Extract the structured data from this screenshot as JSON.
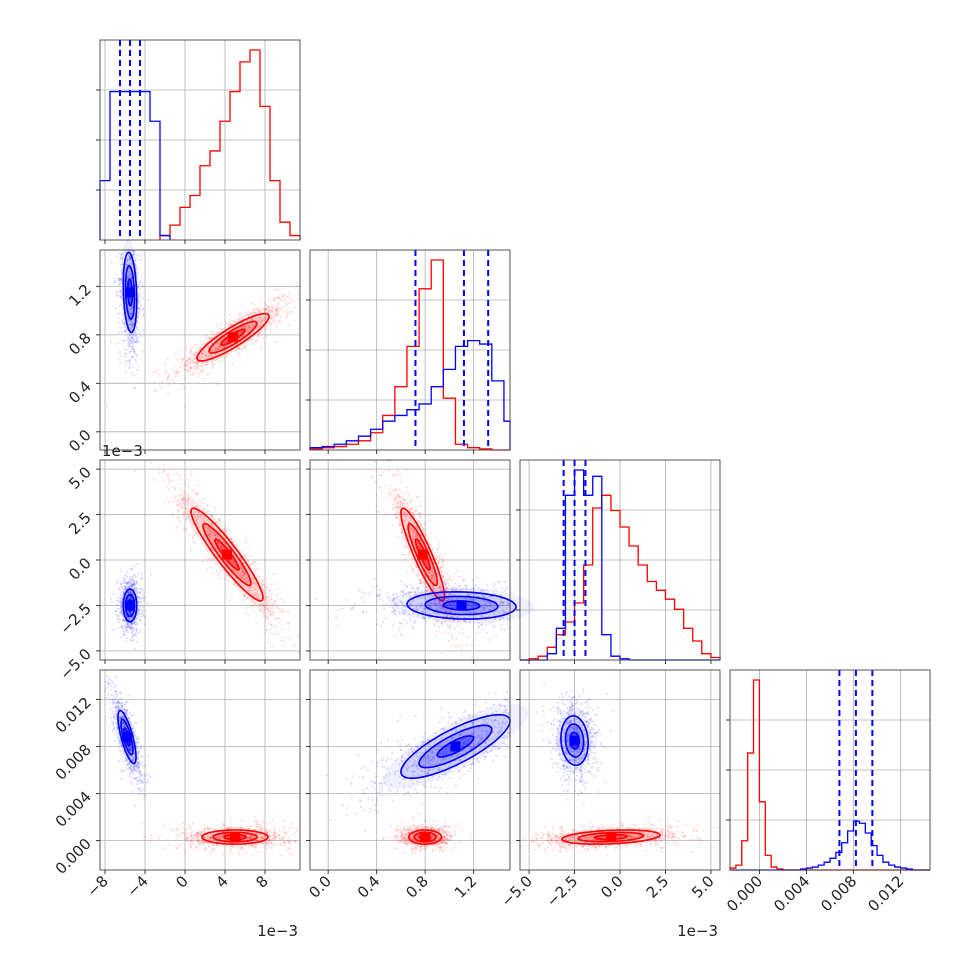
{
  "chart_data": {
    "type": "corner",
    "title": "",
    "colors": {
      "series_a": "#0000ff",
      "series_b": "#ff0000"
    },
    "grid": true,
    "series": [
      {
        "color": "#0000ff"
      },
      {
        "color": "#ff0000"
      }
    ],
    "parameters": [
      {
        "range": [
          -0.0085,
          0.0115
        ],
        "ticks": [
          -8,
          -4,
          0,
          4,
          8
        ],
        "tick_scale": 0.001,
        "tick_labels": [
          "−8",
          "−4",
          "0",
          "4",
          "8"
        ],
        "offset_label": "1e−3",
        "quantiles_blue": [
          -0.0065,
          -0.0055,
          -0.0045
        ],
        "hist_blue": [
          40,
          100,
          100,
          100,
          100,
          80,
          3
        ],
        "hist_blue_bins": [
          -0.0085,
          -0.0075,
          -0.0065,
          -0.0055,
          -0.0045,
          -0.0035,
          -0.0025,
          -0.0015
        ],
        "hist_red_bins": [
          -0.0025,
          -0.0015,
          -0.0005,
          0.0005,
          0.0015,
          0.0025,
          0.0035,
          0.0045,
          0.0055,
          0.0065,
          0.0075,
          0.0085,
          0.0095,
          0.0105,
          0.0115
        ],
        "hist_red": [
          3,
          10,
          22,
          30,
          50,
          60,
          80,
          100,
          120,
          128,
          90,
          40,
          12,
          3
        ]
      },
      {
        "range": [
          -0.15,
          1.5
        ],
        "ticks": [
          0.0,
          0.4,
          0.8,
          1.2
        ],
        "tick_labels": [
          "0.0",
          "0.4",
          "0.8",
          "1.2"
        ],
        "quantiles_blue": [
          0.72,
          1.12,
          1.32
        ],
        "hist_bins": [
          -0.15,
          -0.05,
          0.05,
          0.15,
          0.25,
          0.35,
          0.45,
          0.55,
          0.65,
          0.75,
          0.85,
          0.95,
          1.05,
          1.15,
          1.25,
          1.35,
          1.45,
          1.5
        ],
        "hist_blue": [
          2,
          3,
          5,
          8,
          12,
          18,
          25,
          30,
          35,
          40,
          55,
          70,
          90,
          95,
          92,
          60,
          25
        ],
        "hist_red": [
          1,
          2,
          3,
          5,
          8,
          15,
          30,
          55,
          90,
          140,
          165,
          45,
          5,
          2,
          1,
          0,
          0
        ]
      },
      {
        "range": [
          -0.0055,
          0.0055
        ],
        "ticks": [
          -5.0,
          -2.5,
          0.0,
          2.5,
          5.0
        ],
        "tick_scale": 0.001,
        "tick_labels": [
          "−5.0",
          "−2.5",
          "0.0",
          "2.5",
          "5.0"
        ],
        "offset_label": "1e−3",
        "quantiles_blue": [
          -0.0031,
          -0.0025,
          -0.0019
        ],
        "hist_bins": [
          -0.0055,
          -0.005,
          -0.0045,
          -0.004,
          -0.0035,
          -0.003,
          -0.0025,
          -0.002,
          -0.0015,
          -0.001,
          -0.0005,
          0.0,
          0.0005,
          0.001,
          0.0015,
          0.002,
          0.0025,
          0.003,
          0.0035,
          0.004,
          0.0045,
          0.005,
          0.0055
        ],
        "hist_blue": [
          0,
          0,
          0,
          5,
          25,
          130,
          150,
          130,
          145,
          20,
          3,
          1,
          0,
          0,
          0,
          0,
          0,
          0,
          0,
          0,
          0,
          0
        ],
        "hist_red": [
          0,
          1,
          3,
          10,
          20,
          30,
          45,
          75,
          120,
          130,
          118,
          105,
          90,
          75,
          62,
          55,
          48,
          40,
          25,
          15,
          5,
          2
        ]
      },
      {
        "range": [
          -0.0025,
          0.0145
        ],
        "ticks": [
          0.0,
          0.004,
          0.008,
          0.012
        ],
        "tick_labels": [
          "0.000",
          "0.004",
          "0.008",
          "0.012"
        ],
        "quantiles_blue": [
          0.0068,
          0.0082,
          0.0096
        ],
        "hist_bins": [
          -0.0025,
          -0.002,
          -0.0015,
          -0.001,
          -0.0005,
          0.0,
          0.0005,
          0.001,
          0.0015,
          0.002,
          0.0025,
          0.003,
          0.0035,
          0.004,
          0.0045,
          0.005,
          0.0055,
          0.006,
          0.0065,
          0.007,
          0.0075,
          0.008,
          0.0085,
          0.009,
          0.0095,
          0.01,
          0.0105,
          0.011,
          0.0115,
          0.012,
          0.0125,
          0.013,
          0.0135,
          0.014,
          0.0145
        ],
        "hist_blue": [
          0,
          0,
          0,
          0,
          0,
          0,
          0,
          0,
          0,
          0,
          0,
          0,
          1,
          2,
          3,
          5,
          8,
          12,
          18,
          28,
          40,
          50,
          48,
          38,
          25,
          15,
          8,
          5,
          3,
          2,
          1,
          0,
          0,
          0
        ],
        "hist_red": [
          2,
          5,
          30,
          120,
          195,
          70,
          15,
          3,
          1,
          0,
          0,
          0,
          0,
          0,
          0,
          0,
          0,
          0,
          0,
          0,
          0,
          0,
          0,
          0,
          0,
          0,
          0,
          0,
          0,
          0,
          0,
          0,
          0,
          0
        ]
      }
    ],
    "pairs": [
      {
        "row": 1,
        "col": 0,
        "blue": {
          "mean": [
            -0.0055,
            1.15
          ],
          "sd": [
            0.00045,
            0.22
          ],
          "rho": -0.2
        },
        "red": {
          "mean": [
            0.0048,
            0.78
          ],
          "sd": [
            0.0024,
            0.13
          ],
          "rho": 0.88
        }
      },
      {
        "row": 2,
        "col": 0,
        "blue": {
          "mean": [
            -0.0055,
            -0.0025
          ],
          "sd": [
            0.00045,
            0.0006
          ],
          "rho": 0.0
        },
        "red": {
          "mean": [
            0.0042,
            0.0003
          ],
          "sd": [
            0.0024,
            0.0017
          ],
          "rho": -0.93
        }
      },
      {
        "row": 2,
        "col": 1,
        "blue": {
          "mean": [
            1.1,
            -0.0025
          ],
          "sd": [
            0.3,
            0.0005
          ],
          "rho": -0.1
        },
        "red": {
          "mean": [
            0.78,
            0.0003
          ],
          "sd": [
            0.12,
            0.0017
          ],
          "rho": -0.9
        }
      },
      {
        "row": 3,
        "col": 0,
        "blue": {
          "mean": [
            -0.0058,
            0.0088
          ],
          "sd": [
            0.0006,
            0.0015
          ],
          "rho": -0.75
        },
        "red": {
          "mean": [
            0.005,
            0.0003
          ],
          "sd": [
            0.0022,
            0.0004
          ],
          "rho": 0.0
        }
      },
      {
        "row": 3,
        "col": 1,
        "blue": {
          "mean": [
            1.05,
            0.008
          ],
          "sd": [
            0.3,
            0.0018
          ],
          "rho": 0.8
        },
        "red": {
          "mean": [
            0.8,
            0.0003
          ],
          "sd": [
            0.09,
            0.0004
          ],
          "rho": 0.0
        }
      },
      {
        "row": 3,
        "col": 2,
        "blue": {
          "mean": [
            -0.0025,
            0.0085
          ],
          "sd": [
            0.0005,
            0.0014
          ],
          "rho": -0.1
        },
        "red": {
          "mean": [
            -0.0005,
            0.0003
          ],
          "sd": [
            0.0018,
            0.0004
          ],
          "rho": 0.3
        }
      }
    ]
  }
}
